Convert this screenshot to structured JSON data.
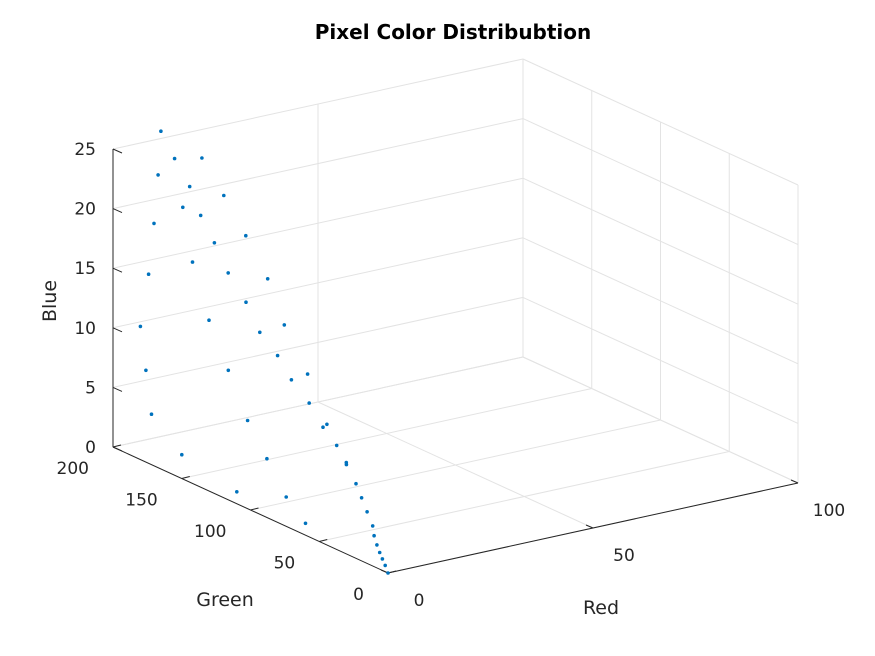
{
  "chart_data": {
    "type": "scatter",
    "title": "Pixel Color Distribubtion",
    "xlabel": "Red",
    "ylabel": "Green",
    "zlabel": "Blue",
    "xlim": [
      0,
      100
    ],
    "ylim": [
      0,
      200
    ],
    "zlim": [
      0,
      25
    ],
    "xticks": [
      {
        "value": 0,
        "label": "0"
      },
      {
        "value": 50,
        "label": "50"
      },
      {
        "value": 100,
        "label": "100"
      }
    ],
    "yticks": [
      {
        "value": 0,
        "label": "0"
      },
      {
        "value": 50,
        "label": "50"
      },
      {
        "value": 100,
        "label": "100"
      },
      {
        "value": 150,
        "label": "150"
      },
      {
        "value": 200,
        "label": "200"
      }
    ],
    "zticks": [
      {
        "value": 0,
        "label": "0"
      },
      {
        "value": 5,
        "label": "5"
      },
      {
        "value": 10,
        "label": "10"
      },
      {
        "value": 15,
        "label": "15"
      },
      {
        "value": 20,
        "label": "20"
      },
      {
        "value": 25,
        "label": "25"
      }
    ],
    "grid": true,
    "marker_color": "#0072BD",
    "points": [
      [
        0,
        0,
        0
      ],
      [
        1,
        5,
        0.3
      ],
      [
        2,
        10,
        0.5
      ],
      [
        3,
        15,
        0.7
      ],
      [
        4,
        20,
        1
      ],
      [
        6,
        28,
        1.2
      ],
      [
        8,
        35,
        1.5
      ],
      [
        10,
        45,
        2
      ],
      [
        12,
        55,
        2.5
      ],
      [
        14,
        65,
        3
      ],
      [
        15,
        75,
        4
      ],
      [
        16,
        85,
        5
      ],
      [
        16,
        95,
        6
      ],
      [
        16,
        105,
        7.5
      ],
      [
        15,
        115,
        9
      ],
      [
        15,
        125,
        10.5
      ],
      [
        14,
        135,
        12
      ],
      [
        14,
        145,
        14
      ],
      [
        13,
        155,
        16
      ],
      [
        13,
        165,
        18
      ],
      [
        12,
        172,
        20
      ],
      [
        12,
        180,
        22
      ],
      [
        11,
        188,
        24
      ],
      [
        10,
        195,
        26
      ],
      [
        0,
        60,
        1
      ],
      [
        2,
        80,
        2
      ],
      [
        4,
        100,
        4
      ],
      [
        6,
        120,
        6
      ],
      [
        8,
        140,
        9
      ],
      [
        10,
        160,
        12
      ],
      [
        11,
        175,
        16
      ],
      [
        12,
        185,
        20
      ],
      [
        0,
        110,
        1
      ],
      [
        0,
        150,
        2
      ],
      [
        1,
        175,
        4
      ],
      [
        3,
        185,
        7
      ],
      [
        5,
        195,
        10
      ],
      [
        8,
        198,
        14
      ],
      [
        10,
        200,
        18
      ],
      [
        11,
        200,
        22
      ],
      [
        20,
        90,
        3
      ],
      [
        22,
        110,
        5
      ],
      [
        24,
        130,
        8
      ],
      [
        25,
        150,
        11
      ],
      [
        26,
        165,
        14
      ],
      [
        25,
        178,
        17
      ],
      [
        23,
        188,
        20
      ],
      [
        20,
        195,
        23
      ]
    ]
  }
}
